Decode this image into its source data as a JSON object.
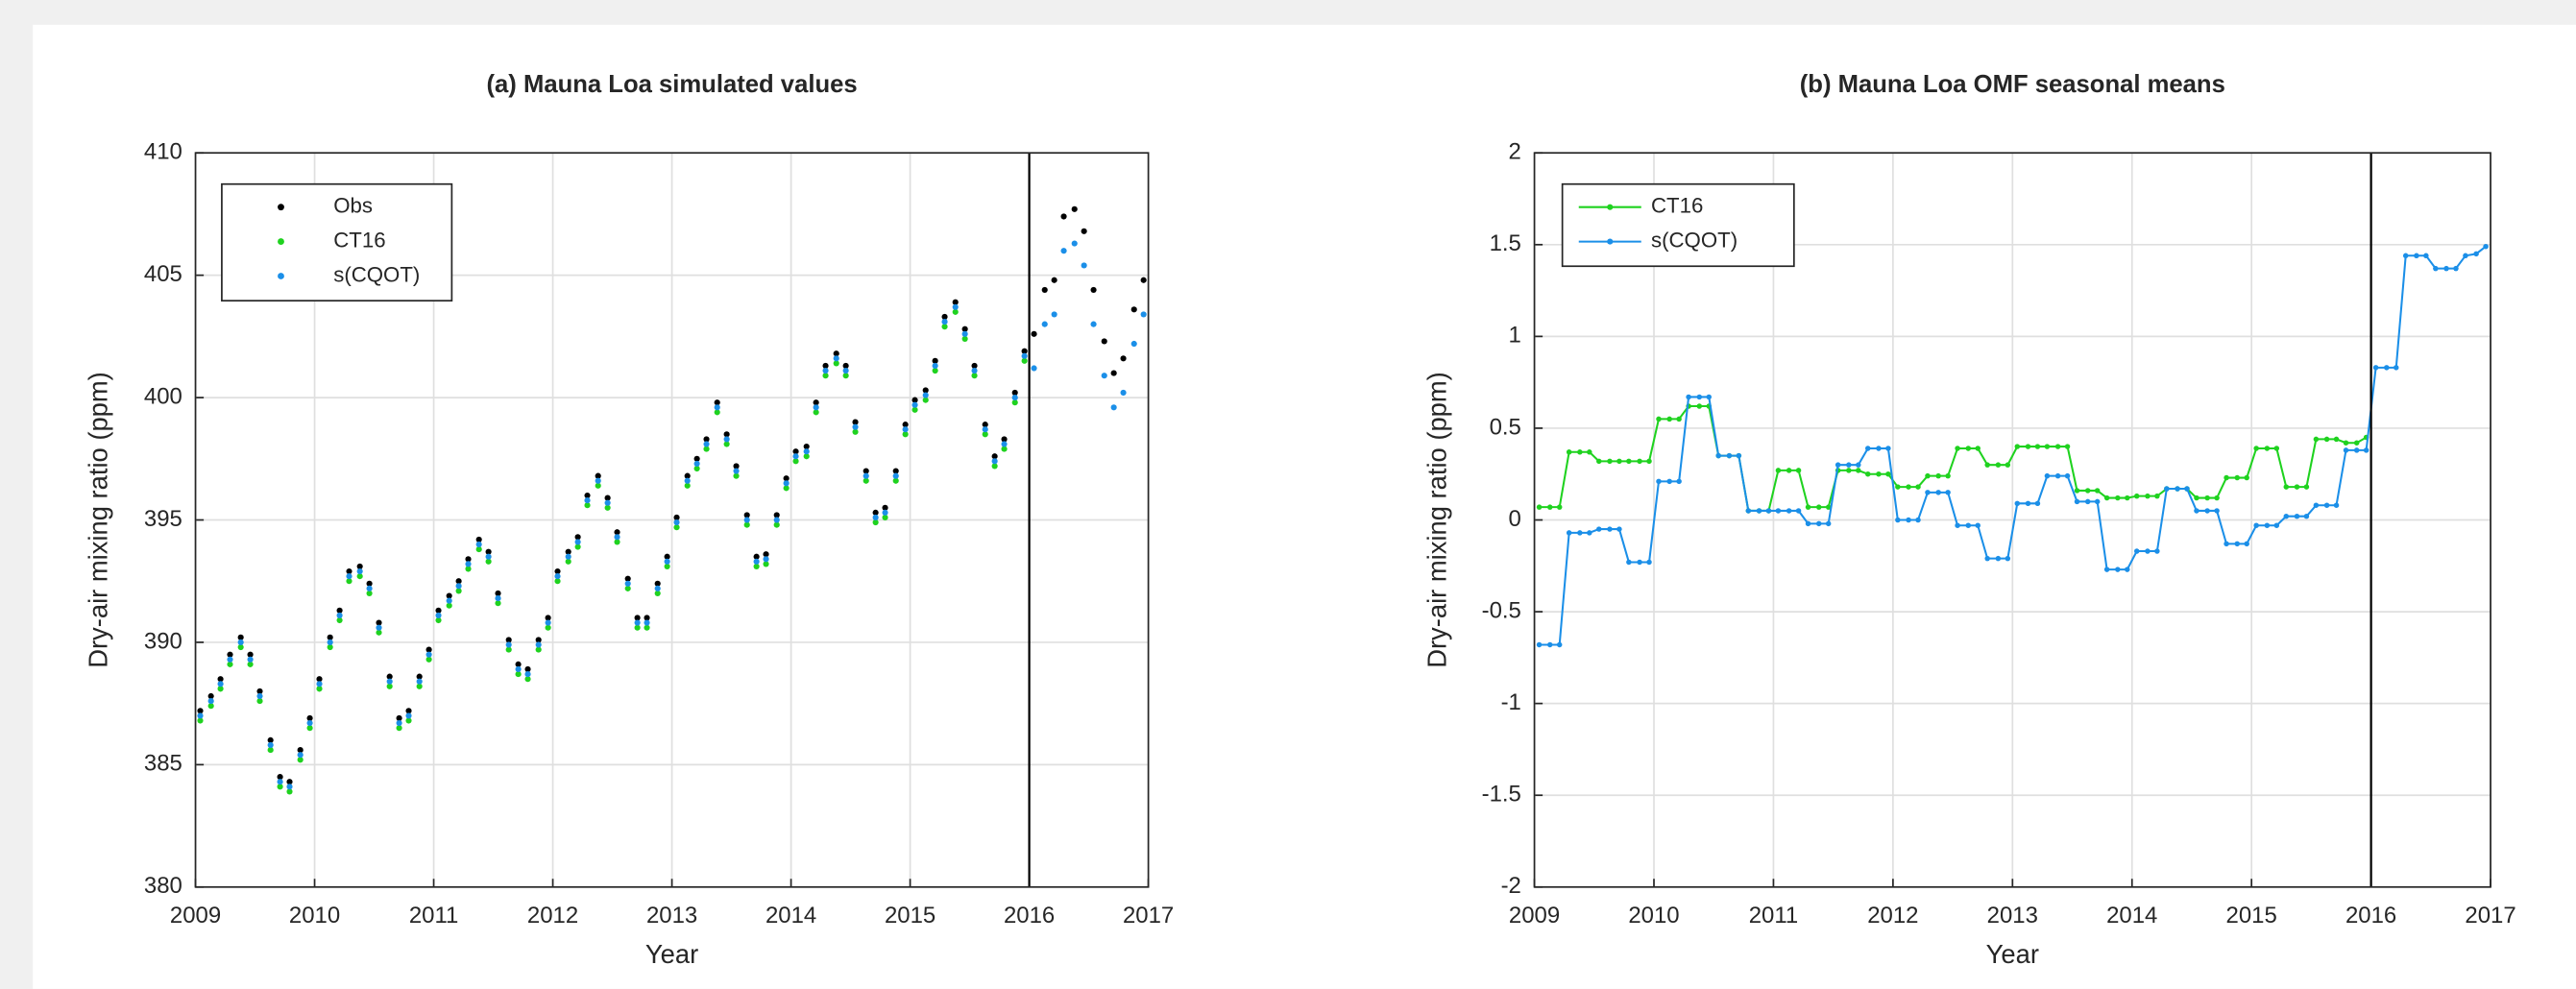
{
  "chart_data": [
    {
      "type": "scatter",
      "title": "(a) Mauna Loa simulated values",
      "xlabel": "Year",
      "ylabel": "Dry-air mixing ratio (ppm)",
      "xlim": [
        2009,
        2017
      ],
      "xticks": [
        2009,
        2010,
        2011,
        2012,
        2013,
        2014,
        2015,
        2016,
        2017
      ],
      "ylim": [
        380,
        410
      ],
      "yticks": [
        380,
        385,
        390,
        395,
        400,
        405,
        410
      ],
      "grid": true,
      "legend": "upper left",
      "vline": 2016,
      "x": [
        2009.04,
        2009.13,
        2009.21,
        2009.29,
        2009.38,
        2009.46,
        2009.54,
        2009.63,
        2009.71,
        2009.79,
        2009.88,
        2009.96,
        2010.04,
        2010.13,
        2010.21,
        2010.29,
        2010.38,
        2010.46,
        2010.54,
        2010.63,
        2010.71,
        2010.79,
        2010.88,
        2010.96,
        2011.04,
        2011.13,
        2011.21,
        2011.29,
        2011.38,
        2011.46,
        2011.54,
        2011.63,
        2011.71,
        2011.79,
        2011.88,
        2011.96,
        2012.04,
        2012.13,
        2012.21,
        2012.29,
        2012.38,
        2012.46,
        2012.54,
        2012.63,
        2012.71,
        2012.79,
        2012.88,
        2012.96,
        2013.04,
        2013.13,
        2013.21,
        2013.29,
        2013.38,
        2013.46,
        2013.54,
        2013.63,
        2013.71,
        2013.79,
        2013.88,
        2013.96,
        2014.04,
        2014.13,
        2014.21,
        2014.29,
        2014.38,
        2014.46,
        2014.54,
        2014.63,
        2014.71,
        2014.79,
        2014.88,
        2014.96,
        2015.04,
        2015.13,
        2015.21,
        2015.29,
        2015.38,
        2015.46,
        2015.54,
        2015.63,
        2015.71,
        2015.79,
        2015.88,
        2015.96,
        2016.04,
        2016.13,
        2016.21,
        2016.29,
        2016.38,
        2016.46,
        2016.54,
        2016.63,
        2016.71,
        2016.79,
        2016.88,
        2016.96
      ],
      "series": [
        {
          "name": "Obs",
          "color": "#000000",
          "values": [
            387.2,
            387.8,
            388.5,
            389.5,
            390.2,
            389.5,
            388.0,
            386.0,
            384.5,
            384.3,
            385.6,
            386.9,
            388.5,
            390.2,
            391.3,
            392.9,
            393.1,
            392.4,
            390.8,
            388.6,
            386.9,
            387.2,
            388.6,
            389.7,
            391.3,
            391.9,
            392.5,
            393.4,
            394.2,
            393.7,
            392.0,
            390.1,
            389.1,
            388.9,
            390.1,
            391.0,
            392.9,
            393.7,
            394.3,
            396.0,
            396.8,
            395.9,
            394.5,
            392.6,
            391.0,
            391.0,
            392.4,
            393.5,
            395.1,
            396.8,
            397.5,
            398.3,
            399.8,
            398.5,
            397.2,
            395.2,
            393.5,
            393.6,
            395.2,
            396.7,
            397.8,
            398.0,
            399.8,
            401.3,
            401.8,
            401.3,
            399.0,
            397.0,
            395.3,
            395.5,
            397.0,
            398.9,
            399.9,
            400.3,
            401.5,
            403.3,
            403.9,
            402.8,
            401.3,
            398.9,
            397.6,
            398.3,
            400.2,
            401.9,
            402.6,
            404.4,
            404.8,
            407.4,
            407.7,
            406.8,
            404.4,
            402.3,
            401.0,
            401.6,
            403.6,
            404.8
          ]
        },
        {
          "name": "CT16",
          "color": "#1fd21f",
          "values": [
            386.8,
            387.4,
            388.1,
            389.1,
            389.8,
            389.1,
            387.6,
            385.6,
            384.1,
            383.9,
            385.2,
            386.5,
            388.1,
            389.8,
            390.9,
            392.5,
            392.7,
            392.0,
            390.4,
            388.2,
            386.5,
            386.8,
            388.2,
            389.3,
            390.9,
            391.5,
            392.1,
            393.0,
            393.8,
            393.3,
            391.6,
            389.7,
            388.7,
            388.5,
            389.7,
            390.6,
            392.5,
            393.3,
            393.9,
            395.6,
            396.4,
            395.5,
            394.1,
            392.2,
            390.6,
            390.6,
            392.0,
            393.1,
            394.7,
            396.4,
            397.1,
            397.9,
            399.4,
            398.1,
            396.8,
            394.8,
            393.1,
            393.2,
            394.8,
            396.3,
            397.4,
            397.6,
            399.4,
            400.9,
            401.4,
            400.9,
            398.6,
            396.6,
            394.9,
            395.1,
            396.6,
            398.5,
            399.5,
            399.9,
            401.1,
            402.9,
            403.5,
            402.4,
            400.9,
            398.5,
            397.2,
            397.9,
            399.8,
            401.5,
            null,
            null,
            null,
            null,
            null,
            null,
            null,
            null,
            null,
            null,
            null,
            null
          ]
        },
        {
          "name": "s(CQOT)",
          "color": "#1b8fe8",
          "values": [
            387.0,
            387.6,
            388.3,
            389.3,
            390.0,
            389.3,
            387.8,
            385.8,
            384.3,
            384.1,
            385.4,
            386.7,
            388.3,
            390.0,
            391.1,
            392.7,
            392.9,
            392.2,
            390.6,
            388.4,
            386.7,
            387.0,
            388.4,
            389.5,
            391.1,
            391.7,
            392.3,
            393.2,
            394.0,
            393.5,
            391.8,
            389.9,
            388.9,
            388.7,
            389.9,
            390.8,
            392.7,
            393.5,
            394.1,
            395.8,
            396.6,
            395.7,
            394.3,
            392.4,
            390.8,
            390.8,
            392.2,
            393.3,
            394.9,
            396.6,
            397.3,
            398.1,
            399.6,
            398.3,
            397.0,
            395.0,
            393.3,
            393.4,
            395.0,
            396.5,
            397.6,
            397.8,
            399.6,
            401.1,
            401.6,
            401.1,
            398.8,
            396.8,
            395.1,
            395.3,
            396.8,
            398.7,
            399.7,
            400.1,
            401.3,
            403.1,
            403.7,
            402.6,
            401.1,
            398.7,
            397.4,
            398.1,
            400.0,
            401.7,
            401.2,
            403.0,
            403.4,
            406.0,
            406.3,
            405.4,
            403.0,
            400.9,
            399.6,
            400.2,
            402.2,
            403.4
          ]
        }
      ]
    },
    {
      "type": "line",
      "title": "(b) Mauna Loa OMF seasonal means",
      "xlabel": "Year",
      "ylabel": "Dry-air mixing ratio (ppm)",
      "xlim": [
        2009,
        2017
      ],
      "xticks": [
        2009,
        2010,
        2011,
        2012,
        2013,
        2014,
        2015,
        2016,
        2017
      ],
      "ylim": [
        -2,
        2
      ],
      "yticks": [
        -2,
        -1.5,
        -1,
        -0.5,
        0,
        0.5,
        1,
        1.5,
        2
      ],
      "grid": true,
      "legend": "upper left",
      "vline": 2016,
      "x": [
        2009.04,
        2009.13,
        2009.21,
        2009.29,
        2009.38,
        2009.46,
        2009.54,
        2009.63,
        2009.71,
        2009.79,
        2009.88,
        2009.96,
        2010.04,
        2010.13,
        2010.21,
        2010.29,
        2010.38,
        2010.46,
        2010.54,
        2010.63,
        2010.71,
        2010.79,
        2010.88,
        2010.96,
        2011.04,
        2011.13,
        2011.21,
        2011.29,
        2011.38,
        2011.46,
        2011.54,
        2011.63,
        2011.71,
        2011.79,
        2011.88,
        2011.96,
        2012.04,
        2012.13,
        2012.21,
        2012.29,
        2012.38,
        2012.46,
        2012.54,
        2012.63,
        2012.71,
        2012.79,
        2012.88,
        2012.96,
        2013.04,
        2013.13,
        2013.21,
        2013.29,
        2013.38,
        2013.46,
        2013.54,
        2013.63,
        2013.71,
        2013.79,
        2013.88,
        2013.96,
        2014.04,
        2014.13,
        2014.21,
        2014.29,
        2014.38,
        2014.46,
        2014.54,
        2014.63,
        2014.71,
        2014.79,
        2014.88,
        2014.96,
        2015.04,
        2015.13,
        2015.21,
        2015.29,
        2015.38,
        2015.46,
        2015.54,
        2015.63,
        2015.71,
        2015.79,
        2015.88,
        2015.96,
        2016.04,
        2016.13,
        2016.21,
        2016.29,
        2016.38,
        2016.46,
        2016.54,
        2016.63,
        2016.71,
        2016.79,
        2016.88,
        2016.96
      ],
      "series": [
        {
          "name": "CT16",
          "color": "#1fd21f",
          "values": [
            0.07,
            0.07,
            0.07,
            0.37,
            0.37,
            0.37,
            0.32,
            0.32,
            0.32,
            0.32,
            0.32,
            0.32,
            0.55,
            0.55,
            0.55,
            0.62,
            0.62,
            0.62,
            0.35,
            0.35,
            0.35,
            0.05,
            0.05,
            0.05,
            0.27,
            0.27,
            0.27,
            0.07,
            0.07,
            0.07,
            0.27,
            0.27,
            0.27,
            0.25,
            0.25,
            0.25,
            0.18,
            0.18,
            0.18,
            0.24,
            0.24,
            0.24,
            0.39,
            0.39,
            0.39,
            0.3,
            0.3,
            0.3,
            0.4,
            0.4,
            0.4,
            0.4,
            0.4,
            0.4,
            0.16,
            0.16,
            0.16,
            0.12,
            0.12,
            0.12,
            0.13,
            0.13,
            0.13,
            0.17,
            0.17,
            0.17,
            0.12,
            0.12,
            0.12,
            0.23,
            0.23,
            0.23,
            0.39,
            0.39,
            0.39,
            0.18,
            0.18,
            0.18,
            0.44,
            0.44,
            0.44,
            0.42,
            0.42,
            0.45,
            null,
            null,
            null,
            null,
            null,
            null,
            null,
            null,
            null,
            null,
            null,
            null
          ]
        },
        {
          "name": "s(CQOT)",
          "color": "#1b8fe8",
          "values": [
            -0.68,
            -0.68,
            -0.68,
            -0.07,
            -0.07,
            -0.07,
            -0.05,
            -0.05,
            -0.05,
            -0.23,
            -0.23,
            -0.23,
            0.21,
            0.21,
            0.21,
            0.67,
            0.67,
            0.67,
            0.35,
            0.35,
            0.35,
            0.05,
            0.05,
            0.05,
            0.05,
            0.05,
            0.05,
            -0.02,
            -0.02,
            -0.02,
            0.3,
            0.3,
            0.3,
            0.39,
            0.39,
            0.39,
            0.0,
            0.0,
            0.0,
            0.15,
            0.15,
            0.15,
            -0.03,
            -0.03,
            -0.03,
            -0.21,
            -0.21,
            -0.21,
            0.09,
            0.09,
            0.09,
            0.24,
            0.24,
            0.24,
            0.1,
            0.1,
            0.1,
            -0.27,
            -0.27,
            -0.27,
            -0.17,
            -0.17,
            -0.17,
            0.17,
            0.17,
            0.17,
            0.05,
            0.05,
            0.05,
            -0.13,
            -0.13,
            -0.13,
            -0.03,
            -0.03,
            -0.03,
            0.02,
            0.02,
            0.02,
            0.08,
            0.08,
            0.08,
            0.38,
            0.38,
            0.38,
            0.83,
            0.83,
            0.83,
            1.44,
            1.44,
            1.44,
            1.37,
            1.37,
            1.37,
            1.44,
            1.45,
            1.49
          ]
        }
      ]
    }
  ]
}
